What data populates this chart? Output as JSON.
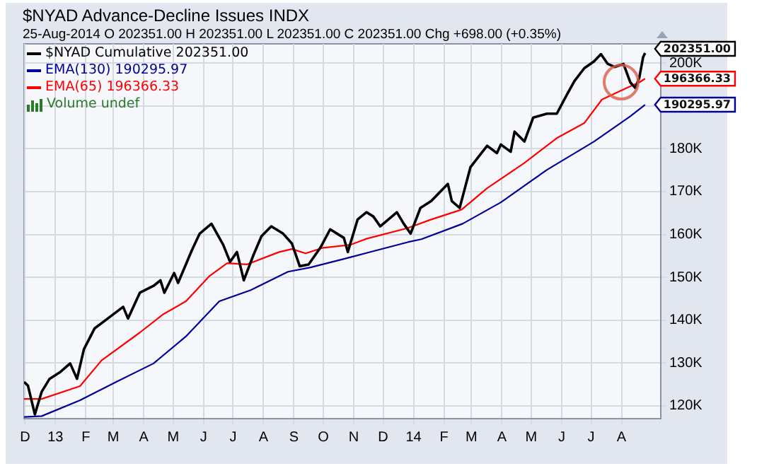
{
  "chart_data": {
    "type": "line",
    "title": "$NYAD Advance-Decline Issues INDX",
    "subtitle": "25-Aug-2014  O 202351.00  H 202351.00  L 202351.00  C 202351.00  Chg +698.00 (+0.35%)",
    "legend": "top left",
    "grid": true,
    "marker": "none",
    "line_style": "solid",
    "xlim": [
      "2012-11-30",
      "2014-09-10"
    ],
    "xticks": [
      {
        "value": "2012-12-01",
        "label": "D"
      },
      {
        "value": "2013-01-01",
        "label": "13"
      },
      {
        "value": "2013-02-01",
        "label": "F"
      },
      {
        "value": "2013-03-01",
        "label": "M"
      },
      {
        "value": "2013-04-01",
        "label": "A"
      },
      {
        "value": "2013-05-01",
        "label": "M"
      },
      {
        "value": "2013-06-01",
        "label": "J"
      },
      {
        "value": "2013-07-01",
        "label": "J"
      },
      {
        "value": "2013-08-01",
        "label": "A"
      },
      {
        "value": "2013-09-01",
        "label": "S"
      },
      {
        "value": "2013-10-01",
        "label": "O"
      },
      {
        "value": "2013-11-01",
        "label": "N"
      },
      {
        "value": "2013-12-01",
        "label": "D"
      },
      {
        "value": "2014-01-01",
        "label": "14"
      },
      {
        "value": "2014-02-01",
        "label": "F"
      },
      {
        "value": "2014-03-01",
        "label": "M"
      },
      {
        "value": "2014-04-01",
        "label": "A"
      },
      {
        "value": "2014-05-01",
        "label": "M"
      },
      {
        "value": "2014-06-01",
        "label": "J"
      },
      {
        "value": "2014-07-01",
        "label": "J"
      },
      {
        "value": "2014-08-01",
        "label": "A"
      }
    ],
    "ylim": [
      117000,
      204500
    ],
    "yticks": [
      {
        "value": 120000,
        "label": "120K"
      },
      {
        "value": 130000,
        "label": "130K"
      },
      {
        "value": 140000,
        "label": "140K"
      },
      {
        "value": 150000,
        "label": "150K"
      },
      {
        "value": 160000,
        "label": "160K"
      },
      {
        "value": 170000,
        "label": "170K"
      },
      {
        "value": 180000,
        "label": "180K"
      },
      {
        "value": 190000,
        "label": null
      },
      {
        "value": 200000,
        "label": "200K"
      }
    ],
    "series": [
      {
        "name": "$NYAD Cumulative 202351.00",
        "color": "#000000",
        "x": [
          "2012-11-30",
          "2012-12-04",
          "2012-12-11",
          "2012-12-18",
          "2012-12-26",
          "2013-01-06",
          "2013-01-16",
          "2013-01-23",
          "2013-01-30",
          "2013-02-10",
          "2013-02-20",
          "2013-03-11",
          "2013-03-16",
          "2013-03-28",
          "2013-04-11",
          "2013-04-18",
          "2013-04-22",
          "2013-05-02",
          "2013-05-06",
          "2013-05-20",
          "2013-05-28",
          "2013-06-09",
          "2013-06-21",
          "2013-06-28",
          "2013-07-05",
          "2013-07-12",
          "2013-07-22",
          "2013-07-30",
          "2013-08-09",
          "2013-08-21",
          "2013-08-30",
          "2013-09-07",
          "2013-09-16",
          "2013-09-28",
          "2013-10-08",
          "2013-10-22",
          "2013-10-26",
          "2013-11-05",
          "2013-11-14",
          "2013-11-21",
          "2013-11-28",
          "2013-12-15",
          "2013-12-22",
          "2013-12-29",
          "2014-01-08",
          "2014-01-19",
          "2014-02-05",
          "2014-02-09",
          "2014-02-17",
          "2014-02-28",
          "2014-03-17",
          "2014-03-27",
          "2014-03-31",
          "2014-04-10",
          "2014-04-14",
          "2014-04-24",
          "2014-05-03",
          "2014-05-17",
          "2014-05-27",
          "2014-06-06",
          "2014-06-14",
          "2014-06-24",
          "2014-07-04",
          "2014-07-11",
          "2014-07-18",
          "2014-07-25",
          "2014-08-03",
          "2014-08-10",
          "2014-08-15",
          "2014-08-19",
          "2014-08-23",
          "2014-08-25"
        ],
        "values": [
          125600,
          124700,
          118000,
          123300,
          126300,
          127900,
          129900,
          126300,
          133200,
          138100,
          139800,
          143100,
          140400,
          146400,
          148000,
          149300,
          146400,
          151000,
          148700,
          156300,
          160200,
          162500,
          157600,
          153600,
          155900,
          149300,
          155300,
          159600,
          161900,
          160200,
          157900,
          152600,
          153000,
          156900,
          161200,
          159200,
          155900,
          163500,
          165200,
          164200,
          161900,
          165200,
          162500,
          160200,
          166200,
          167800,
          171800,
          167800,
          166200,
          175700,
          180700,
          179000,
          181000,
          179300,
          184000,
          181700,
          187300,
          188200,
          188200,
          192500,
          195800,
          198800,
          200400,
          202100,
          199800,
          199100,
          199800,
          195500,
          194200,
          196500,
          201400,
          202351
        ]
      },
      {
        "name": "EMA(130) 190295.97",
        "color": "#000099",
        "x": [
          "2012-11-30",
          "2012-12-18",
          "2013-01-26",
          "2013-03-04",
          "2013-04-11",
          "2013-05-14",
          "2013-06-17",
          "2013-07-19",
          "2013-08-26",
          "2013-09-18",
          "2013-10-22",
          "2013-11-16",
          "2013-12-26",
          "2014-01-09",
          "2014-02-20",
          "2014-03-31",
          "2014-05-17",
          "2014-07-04",
          "2014-08-10",
          "2014-08-25"
        ],
        "values": [
          117400,
          117600,
          121300,
          125600,
          129900,
          136200,
          144400,
          147000,
          151300,
          152300,
          154300,
          155800,
          158200,
          158900,
          162500,
          167500,
          175100,
          181700,
          187600,
          190295.97
        ]
      },
      {
        "name": "EMA(65) 196366.33",
        "color": "#ff0000",
        "x": [
          "2012-11-30",
          "2012-12-18",
          "2013-01-26",
          "2013-02-17",
          "2013-03-28",
          "2013-04-21",
          "2013-05-14",
          "2013-06-07",
          "2013-06-25",
          "2013-07-15",
          "2013-08-17",
          "2013-08-30",
          "2013-09-13",
          "2013-10-01",
          "2013-10-29",
          "2013-11-14",
          "2013-12-26",
          "2014-01-19",
          "2014-02-19",
          "2014-03-17",
          "2014-04-24",
          "2014-05-27",
          "2014-06-24",
          "2014-07-12",
          "2014-08-06",
          "2014-08-19",
          "2014-08-25"
        ],
        "values": [
          121600,
          121600,
          124600,
          130600,
          137100,
          141400,
          144400,
          150300,
          153300,
          153000,
          155900,
          156600,
          155600,
          156900,
          157600,
          159000,
          161500,
          163500,
          165800,
          170800,
          176700,
          182500,
          186000,
          191500,
          194200,
          195500,
          196366.33
        ]
      }
    ],
    "annotations": [
      "Volume undef",
      {
        "text": "202351.00",
        "x": "2014-08-25",
        "y": 202351
      },
      {
        "text": "196366.33",
        "x": "2014-08-25",
        "y": 196366.33
      },
      {
        "text": "190295.97",
        "x": "2014-08-25",
        "y": 190295.97
      }
    ]
  }
}
